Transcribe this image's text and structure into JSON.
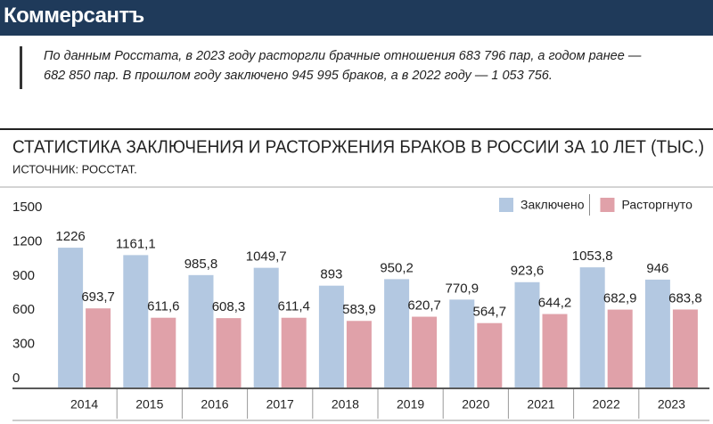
{
  "header": {
    "brand": "Коммерсантъ"
  },
  "quote": [
    "По данным Росстата, в 2023 году расторгли брачные отношения 683 796 пар, а годом ранее —",
    "682 850 пар. В прошлом году заключено 945 995 браков, а в 2022 году — 1 053 756."
  ],
  "chart_data": {
    "type": "bar",
    "title": "СТАТИСТИКА ЗАКЛЮЧЕНИЯ И РАСТОРЖЕНИЯ БРАКОВ В РОССИИ ЗА 10 ЛЕТ (ТЫС.)",
    "subtitle": "ИСТОЧНИК: РОССТАТ.",
    "categories": [
      "2014",
      "2015",
      "2016",
      "2017",
      "2018",
      "2019",
      "2020",
      "2021",
      "2022",
      "2023"
    ],
    "series": [
      {
        "name": "Заключено",
        "color": "#b3c8e1",
        "values": [
          1226,
          1161.1,
          985.8,
          1049.7,
          893,
          950.2,
          770.9,
          923.6,
          1053.8,
          946
        ],
        "value_labels": [
          "1226",
          "1161,1",
          "985,8",
          "1049,7",
          "893",
          "950,2",
          "770,9",
          "923,6",
          "1053,8",
          "946"
        ]
      },
      {
        "name": "Расторгнуто",
        "color": "#e0a1a9",
        "values": [
          693.7,
          611.6,
          608.3,
          611.4,
          583.9,
          620.7,
          564.7,
          644.2,
          682.9,
          683.8
        ],
        "value_labels": [
          "693,7",
          "611,6",
          "608,3",
          "611,4",
          "583,9",
          "620,7",
          "564,7",
          "644,2",
          "682,9",
          "683,8"
        ]
      }
    ],
    "ylim": [
      0,
      1500
    ],
    "yticks": [
      0,
      300,
      600,
      900,
      1200,
      1500
    ],
    "grid": false,
    "legend": "top-right"
  }
}
